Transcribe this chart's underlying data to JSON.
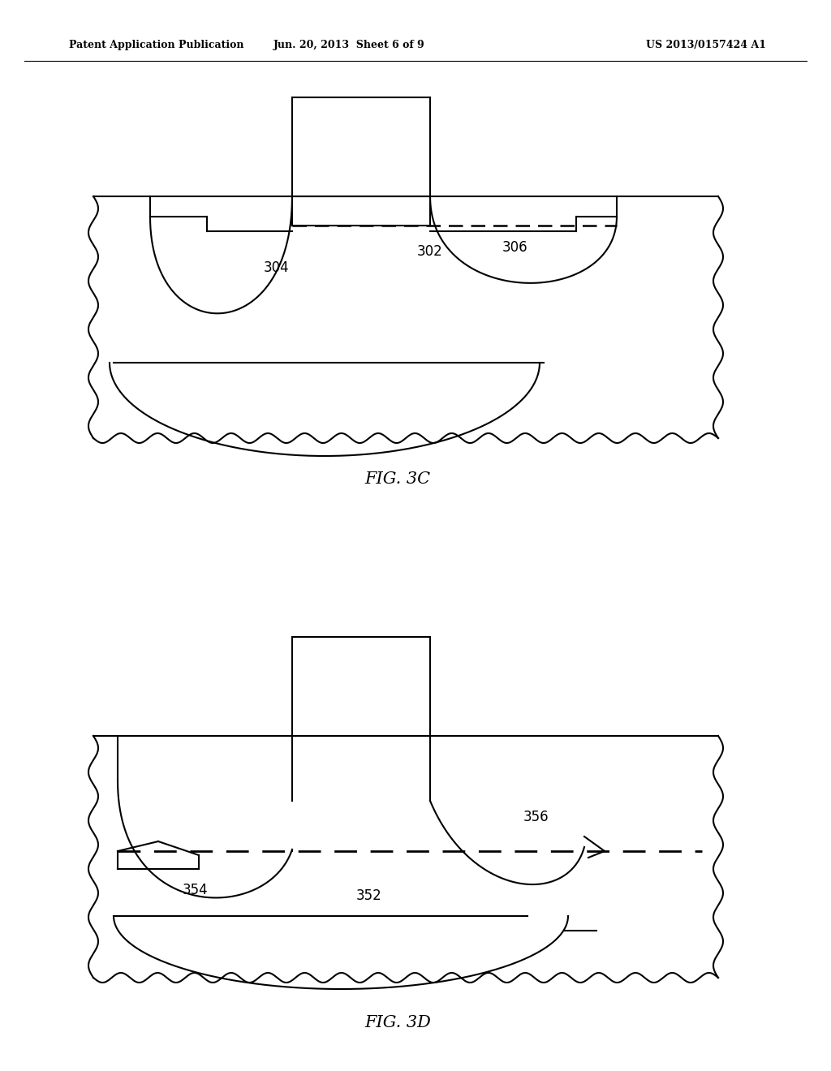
{
  "header_left": "Patent Application Publication",
  "header_mid": "Jun. 20, 2013  Sheet 6 of 9",
  "header_right": "US 2013/0157424 A1",
  "fig3c_label": "FIG. 3C",
  "fig3d_label": "FIG. 3D",
  "label_302": "302",
  "label_304": "304",
  "label_306": "306",
  "label_352": "352",
  "label_354": "354",
  "label_356": "356",
  "bg_color": "#ffffff",
  "line_color": "#000000"
}
